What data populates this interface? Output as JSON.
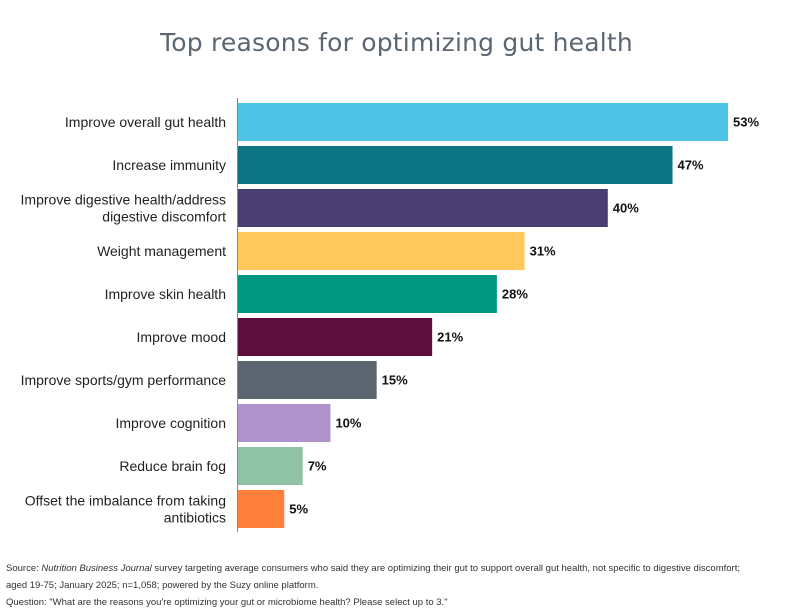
{
  "chart_data": {
    "type": "bar",
    "orientation": "horizontal",
    "title": "Top reasons for optimizing gut health",
    "categories": [
      "Improve overall gut health",
      "Increase immunity",
      "Improve digestive health/address digestive discomfort",
      "Weight management",
      "Improve skin health",
      "Improve mood",
      "Improve sports/gym performance",
      "Improve cognition",
      "Reduce brain fog",
      "Offset the imbalance from taking antibiotics"
    ],
    "category_lines": [
      [
        "Improve overall gut health"
      ],
      [
        "Increase immunity"
      ],
      [
        "Improve digestive health/address",
        "digestive discomfort"
      ],
      [
        "Weight management"
      ],
      [
        "Improve skin health"
      ],
      [
        "Improve mood"
      ],
      [
        "Improve sports/gym performance"
      ],
      [
        "Improve cognition"
      ],
      [
        "Reduce brain fog"
      ],
      [
        "Offset the imbalance from taking",
        "antibiotics"
      ]
    ],
    "values": [
      53,
      47,
      40,
      31,
      28,
      21,
      15,
      10,
      7,
      5
    ],
    "value_labels": [
      "53%",
      "47%",
      "40%",
      "31%",
      "28%",
      "21%",
      "15%",
      "10%",
      "7%",
      "5%"
    ],
    "colors": [
      "#4dc3e6",
      "#0b7583",
      "#4a3d70",
      "#fec85a",
      "#00967f",
      "#5d0e3d",
      "#5b6670",
      "#ae92c9",
      "#90c3a5",
      "#ff7f3b"
    ],
    "xlim": [
      0,
      53
    ],
    "unit": "%",
    "grid": false,
    "legend": "none"
  },
  "source": {
    "prefix": "Source: ",
    "publication": "Nutrition Business Journal",
    "line1_rest": " survey targeting average consumers who said they are optimizing their gut to support overall gut health, not specific to digestive discomfort;",
    "line2": "aged 19-75; January 2025;  n=1,058; powered by the Suzy online platform.",
    "line3": "Question: \"What are the reasons you're optimizing your gut or microbiome health? Please select up to 3.\""
  }
}
